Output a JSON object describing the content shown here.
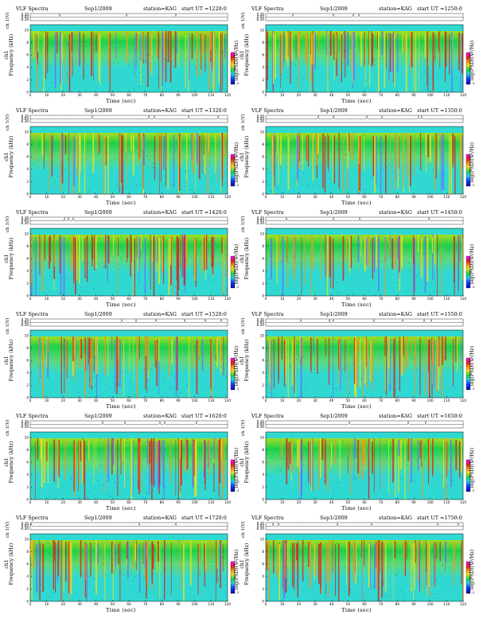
{
  "colors": {
    "low": "#2fd9d2",
    "mid_low": "#1bd24a",
    "mid": "#9fdf22",
    "high": "#f0e11a",
    "higher": "#f4951a",
    "peak": "#d8211a",
    "cb_top": "#ff00ff",
    "cb_bottom": "#0b0aa8"
  },
  "common": {
    "title": "VLF Spectra",
    "date": "Sep1/2009",
    "station": "station=KAG",
    "ch_label": "ch 1(V)",
    "freq_label_line1": "ch1",
    "freq_label_line2": "Frequency  (kHz)",
    "cb_label": "log(PSD)(V²/Hz)",
    "x_label": "Time  (sec)",
    "ch_ticks": [
      "0.30",
      "0.00",
      "-0.30"
    ],
    "freq_ticks": [
      "0",
      "2",
      "4",
      "6",
      "8",
      "10"
    ],
    "time_ticks": [
      "0",
      "10",
      "20",
      "30",
      "40",
      "50",
      "60",
      "70",
      "80",
      "90",
      "100",
      "110",
      "120"
    ]
  },
  "panels": [
    {
      "start": "start  UT  =1220:0"
    },
    {
      "start": "start  UT  =1250:0"
    },
    {
      "start": "start  UT  =1320:0"
    },
    {
      "start": "start  UT  =1350:0"
    },
    {
      "start": "start  UT  =1420:0"
    },
    {
      "start": "start  UT  =1450:0"
    },
    {
      "start": "start  UT  =1520:0"
    },
    {
      "start": "start  UT  =1550:0"
    },
    {
      "start": "start  UT  =1620:0"
    },
    {
      "start": "start  UT  =1650:0"
    },
    {
      "start": "start  UT  =1720:0"
    },
    {
      "start": "start  UT  =1750:0"
    }
  ],
  "chart_data": {
    "type": "heatmap",
    "title": "VLF Spectra",
    "date": "Sep1/2009",
    "station": "station=KAG",
    "xlabel": "Time  (sec)",
    "ylabel": "Frequency  (kHz)",
    "waveform_ylabel": "ch 1(V)",
    "colorbar_label": "log(PSD)(V²/Hz)",
    "xlim": [
      0,
      120
    ],
    "ylim": [
      0,
      10
    ],
    "waveform_ylim": [
      -0.3,
      0.3
    ],
    "panel_count": 12,
    "panel_layout": "6 rows x 2 columns",
    "start_times_ut": [
      "1220:0",
      "1250:0",
      "1320:0",
      "1350:0",
      "1420:0",
      "1450:0",
      "1520:0",
      "1550:0",
      "1620:0",
      "1650:0",
      "1720:0",
      "1750:0"
    ]
  }
}
